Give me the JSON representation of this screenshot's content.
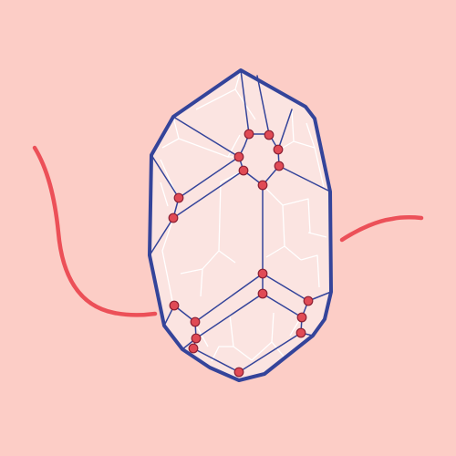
{
  "scene": {
    "subject": "polyhedral-crystal",
    "colors": {
      "background": "#fccdc6",
      "crystal_fill": "#fbe4e1",
      "outline": "#34449a",
      "inner_line": "#ffffff",
      "curve": "#ec5058",
      "node_fill": "#e04a55",
      "node_stroke": "#8b2033"
    },
    "node_count": 20
  }
}
